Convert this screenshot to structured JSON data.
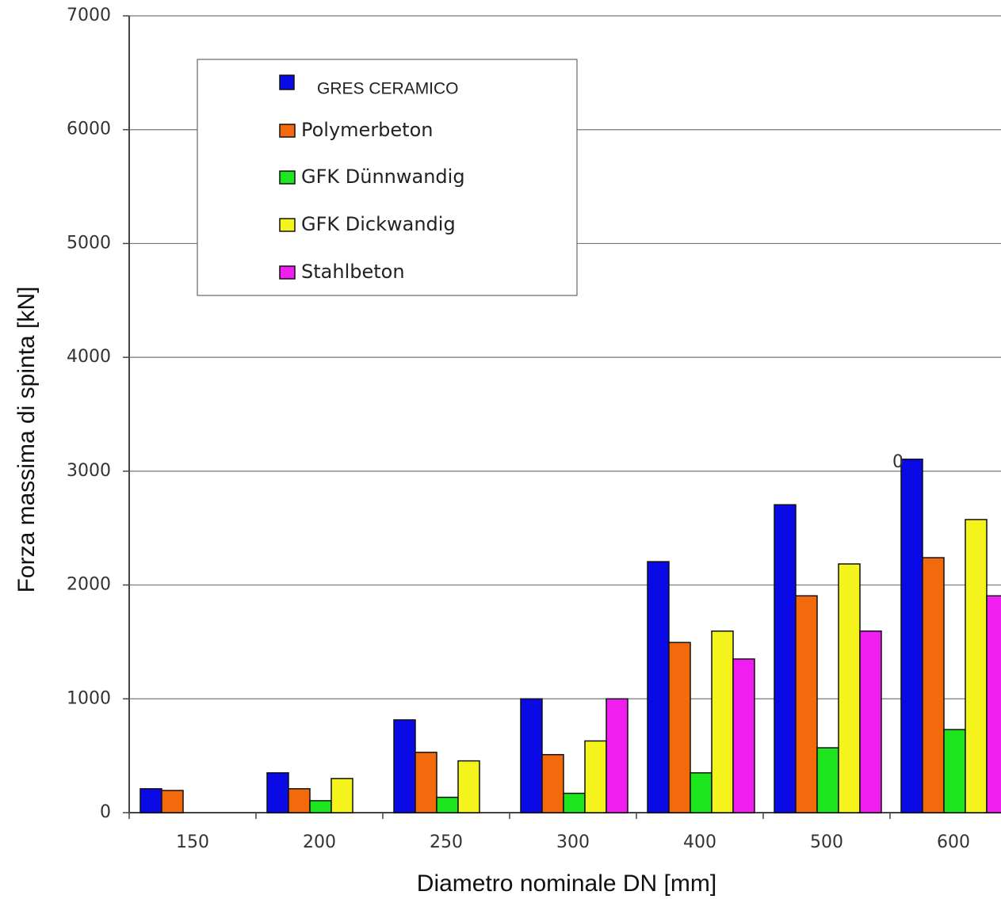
{
  "chart_data": {
    "type": "bar",
    "categories": [
      "150",
      "200",
      "250",
      "300",
      "400",
      "500",
      "600"
    ],
    "series": [
      {
        "name": "GRES CERAMICO",
        "color": "#0a0ae6",
        "values": [
          210,
          350,
          815,
          1000,
          2205,
          2705,
          3105
        ]
      },
      {
        "name": "Polymerbeton",
        "color": "#f26a0c",
        "values": [
          195,
          210,
          530,
          510,
          1495,
          1905,
          2240
        ]
      },
      {
        "name": "GFK Dünnwandig",
        "color": "#1ee61e",
        "values": [
          null,
          105,
          135,
          170,
          350,
          570,
          730
        ]
      },
      {
        "name": "GFK Dickwandig",
        "color": "#f4f41c",
        "values": [
          null,
          300,
          455,
          630,
          1595,
          2185,
          2575
        ]
      },
      {
        "name": "Stahlbeton",
        "color": "#f01ef0",
        "values": [
          null,
          null,
          null,
          1000,
          1350,
          1595,
          1905
        ]
      }
    ],
    "ylim": [
      0,
      7000
    ],
    "yticks": [
      0,
      1000,
      2000,
      3000,
      4000,
      5000,
      6000,
      7000
    ],
    "grid": true,
    "xlabel": "Diametro nominale DN [mm]",
    "ylabel": "Forza massima di spinta [kN]",
    "annotation": "0"
  }
}
